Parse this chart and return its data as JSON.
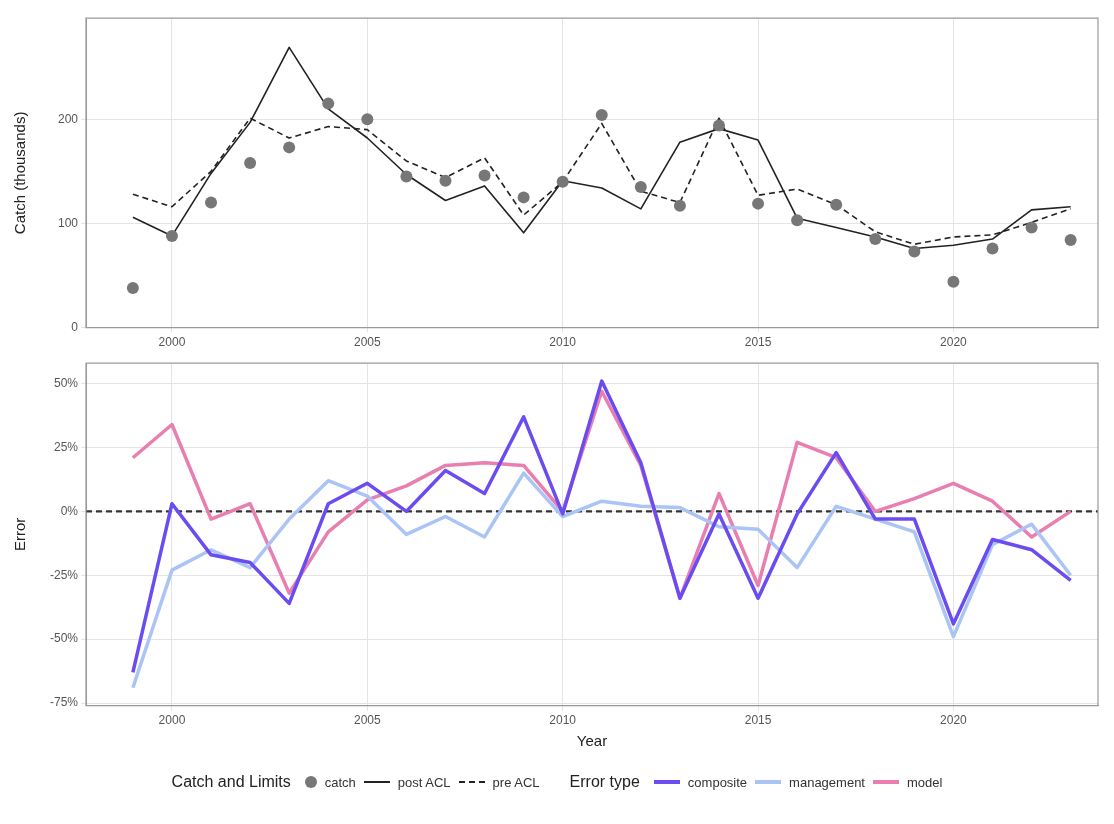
{
  "chart_data": [
    {
      "type": "line",
      "ylabel": "Catch (thousands)",
      "legend_title": "Catch and Limits",
      "legend": "bottom",
      "grid": true,
      "x": [
        1999,
        2000,
        2001,
        2002,
        2003,
        2004,
        2005,
        2006,
        2007,
        2008,
        2009,
        2010,
        2011,
        2012,
        2013,
        2014,
        2015,
        2016,
        2017,
        2018,
        2019,
        2020,
        2021,
        2022,
        2023
      ],
      "xlim": [
        1997.8,
        2023.7
      ],
      "xticks": [
        2000,
        2005,
        2010,
        2015,
        2020
      ],
      "ylim": [
        0,
        297
      ],
      "yticks": [
        0,
        100,
        200
      ],
      "series": [
        {
          "name": "catch",
          "type": "scatter",
          "marker": "circle",
          "color": "#777777",
          "values": [
            38,
            88,
            120,
            158,
            173,
            215,
            200,
            145,
            141,
            146,
            125,
            140,
            204,
            135,
            117,
            194,
            119,
            103,
            118,
            85,
            73,
            44,
            76,
            96,
            84
          ]
        },
        {
          "name": "post ACL",
          "type": "line",
          "marker": "none",
          "line_style": "solid",
          "color": "#222222",
          "values": [
            106,
            88,
            148,
            197,
            269,
            210,
            182,
            147,
            122,
            136,
            91,
            141,
            134,
            114,
            178,
            191,
            180,
            105,
            96,
            87,
            76,
            79,
            85,
            113,
            116
          ]
        },
        {
          "name": "pre ACL",
          "type": "line",
          "marker": "none",
          "line_style": "dashed",
          "color": "#222222",
          "values": [
            128,
            116,
            150,
            201,
            182,
            193,
            190,
            160,
            144,
            163,
            108,
            140,
            196,
            131,
            120,
            201,
            127,
            133,
            118,
            92,
            80,
            87,
            89,
            101,
            114
          ]
        }
      ]
    },
    {
      "type": "line",
      "xlabel": "Year",
      "ylabel": "Error",
      "legend_title": "Error type",
      "legend": "bottom",
      "grid": true,
      "x": [
        1999,
        2000,
        2001,
        2002,
        2003,
        2004,
        2005,
        2006,
        2007,
        2008,
        2009,
        2010,
        2011,
        2012,
        2013,
        2014,
        2015,
        2016,
        2017,
        2018,
        2019,
        2020,
        2021,
        2022,
        2023
      ],
      "xlim": [
        1997.8,
        2023.7
      ],
      "xticks": [
        2000,
        2005,
        2010,
        2015,
        2020
      ],
      "ylim": [
        -76,
        58
      ],
      "yticks": [
        {
          "value": -75,
          "label": "-75%"
        },
        {
          "value": -50,
          "label": "-50%"
        },
        {
          "value": -25,
          "label": "-25%"
        },
        {
          "value": 0,
          "label": "0%"
        },
        {
          "value": 25,
          "label": "25%"
        },
        {
          "value": 50,
          "label": "50%"
        }
      ],
      "ref_lines": [
        {
          "axis": "y",
          "value": 0,
          "color": "#333333",
          "line_style": "dashed"
        }
      ],
      "series": [
        {
          "name": "composite",
          "color": "#6a4cf0",
          "values": [
            -63,
            3,
            -17,
            -20,
            -36,
            3,
            11,
            0,
            16,
            7,
            37,
            -1,
            51,
            19,
            -34,
            -1,
            -34,
            -1,
            23,
            -3,
            -3,
            -44,
            -11,
            -15,
            -27
          ]
        },
        {
          "name": "management",
          "color": "#a9c4f5",
          "values": [
            -69,
            -23,
            -15,
            -22,
            -3,
            12,
            6,
            -9,
            -2,
            -10,
            15,
            -2,
            4,
            2,
            1.5,
            -6,
            -7,
            -22,
            2,
            -3,
            -8,
            -49,
            -13,
            -5,
            -25
          ]
        },
        {
          "name": "model",
          "color": "#e87fb0",
          "values": [
            21,
            34,
            -3,
            3,
            -32,
            -8,
            4.5,
            10,
            18,
            19,
            18,
            0,
            47,
            18,
            -34,
            7,
            -29,
            27,
            21,
            0,
            5,
            11,
            4,
            -10,
            0
          ]
        }
      ]
    }
  ]
}
